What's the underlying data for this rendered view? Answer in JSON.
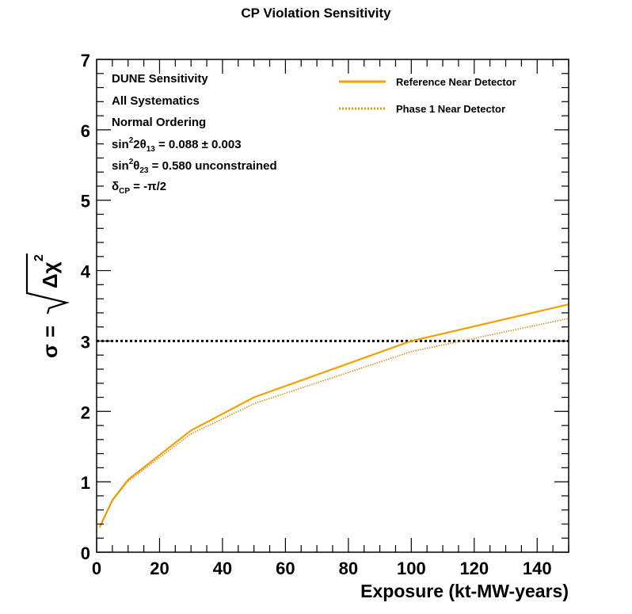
{
  "chart_data": {
    "type": "line",
    "title": "CP Violation Sensitivity",
    "xlabel": "Exposure (kt-MW-years)",
    "ylabel": "σ = √Δχ²",
    "ylabel_parts": {
      "sigma": "σ",
      "equals": "=",
      "delta_chi": "Δχ",
      "squared": "2"
    },
    "xlim": [
      0,
      150
    ],
    "ylim": [
      0,
      7
    ],
    "xticks": [
      0,
      20,
      40,
      60,
      80,
      100,
      120,
      140
    ],
    "yticks": [
      0,
      1,
      2,
      3,
      4,
      5,
      6,
      7
    ],
    "reference_line": {
      "y": 3,
      "style": "dotted",
      "color": "#000000"
    },
    "series": [
      {
        "name": "Reference Near Detector",
        "style": "solid",
        "color": "#f5a000",
        "x": [
          1,
          5,
          10,
          30,
          50,
          100,
          150
        ],
        "y": [
          0.36,
          0.74,
          1.03,
          1.73,
          2.2,
          3.0,
          3.52
        ]
      },
      {
        "name": "Phase 1 Near Detector",
        "style": "dotted",
        "color": "#d4951c",
        "x": [
          1,
          5,
          10,
          30,
          50,
          100,
          150
        ],
        "y": [
          0.35,
          0.73,
          1.01,
          1.68,
          2.11,
          2.85,
          3.32
        ]
      }
    ],
    "annotations": {
      "line1": "DUNE Sensitivity",
      "line2": "All Systematics",
      "line3": "Normal Ordering",
      "theta13": {
        "prefix": "sin",
        "sup": "2",
        "mid": "2θ",
        "sub": "13",
        "rest": " = 0.088 ± 0.003"
      },
      "theta23": {
        "prefix": "sin",
        "sup": "2",
        "mid": "θ",
        "sub": "23",
        "rest": " = 0.580 unconstrained"
      },
      "delta": {
        "prefix": "δ",
        "sub": "CP",
        "rest": " = -π/2"
      }
    }
  }
}
